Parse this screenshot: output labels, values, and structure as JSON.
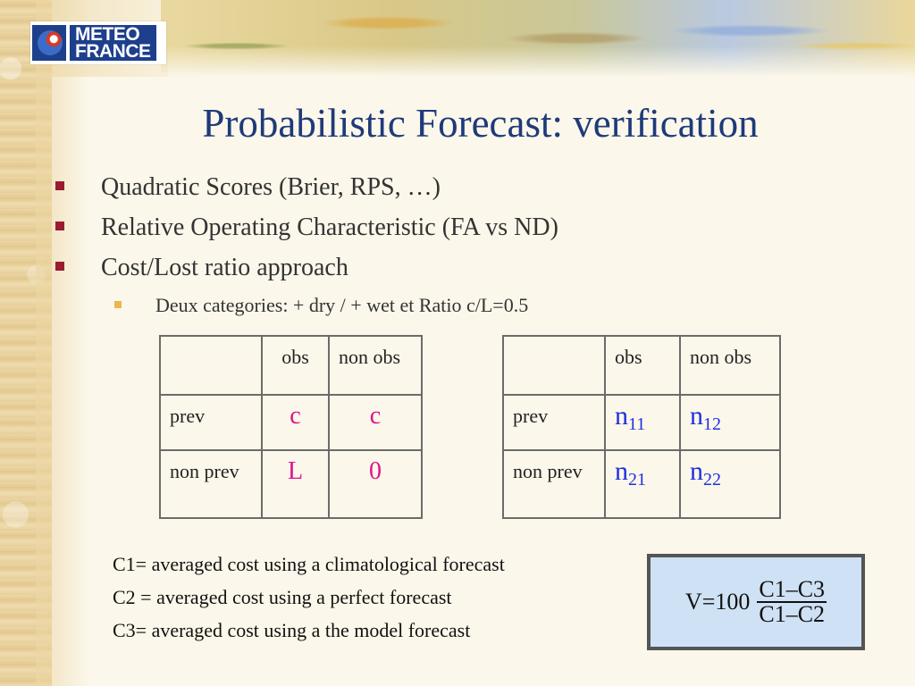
{
  "logo": {
    "line1": "METEO",
    "line2": "FRANCE"
  },
  "title": "Probabilistic Forecast: verification",
  "bullets": [
    "Quadratic Scores (Brier, RPS, …)",
    "Relative Operating Characteristic (FA vs ND)",
    "Cost/Lost ratio approach"
  ],
  "sub_bullet": "Deux categories: + dry / + wet et Ratio c/L=0.5",
  "table1": {
    "headers": [
      "",
      "obs",
      "non obs"
    ],
    "rows": [
      {
        "label": "prev",
        "v1": "c",
        "v2": "c"
      },
      {
        "label": "non prev",
        "v1": "L",
        "v2": "0"
      }
    ]
  },
  "table2": {
    "headers": [
      "",
      "obs",
      "non obs"
    ],
    "rows": [
      {
        "label": "prev",
        "v1": {
          "base": "n",
          "sub": "11"
        },
        "v2": {
          "base": "n",
          "sub": "12"
        }
      },
      {
        "label": "non prev",
        "v1": {
          "base": "n",
          "sub": "21"
        },
        "v2": {
          "base": "n",
          "sub": "22"
        }
      }
    ]
  },
  "cost_lines": [
    "C1= averaged cost using a climatological forecast",
    "C2 = averaged cost using a perfect forecast",
    "C3= averaged cost using a the model forecast"
  ],
  "formula": {
    "lhs": "V=100",
    "numerator": "C1–C3",
    "denominator": "C1–C2"
  },
  "colors": {
    "title": "#1f3a7a",
    "bullet_square": "#9b1b30",
    "sub_bullet_square": "#e8b84a",
    "table1_values": "#e0128c",
    "table2_values": "#1f2fe0",
    "formula_bg": "#cfe1f4",
    "logo_blue": "#1d3f8c"
  }
}
